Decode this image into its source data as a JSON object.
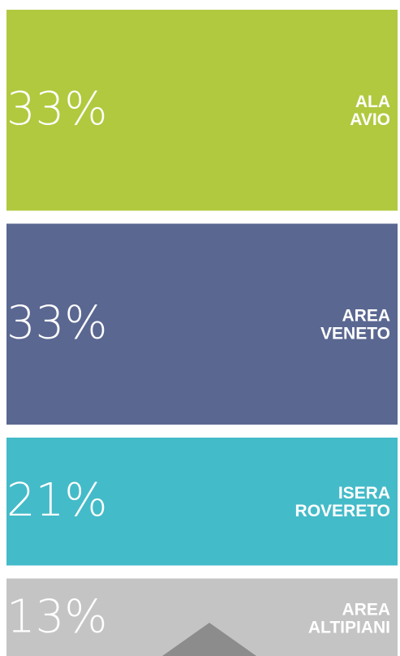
{
  "chart_data": {
    "type": "stacked-blocks",
    "categories": [
      [
        "ALA",
        "AVIO"
      ],
      [
        "AREA",
        "VENETO"
      ],
      [
        "ISERA",
        "ROVERETO"
      ],
      [
        "AREA",
        "ALTIPIANI"
      ]
    ],
    "values": [
      33,
      33,
      21,
      13
    ],
    "value_labels": [
      "33%",
      "33%",
      "21%",
      "13%"
    ],
    "colors": [
      "#b0c93e",
      "#5a6791",
      "#44bbc9",
      "#c4c4c4"
    ]
  }
}
